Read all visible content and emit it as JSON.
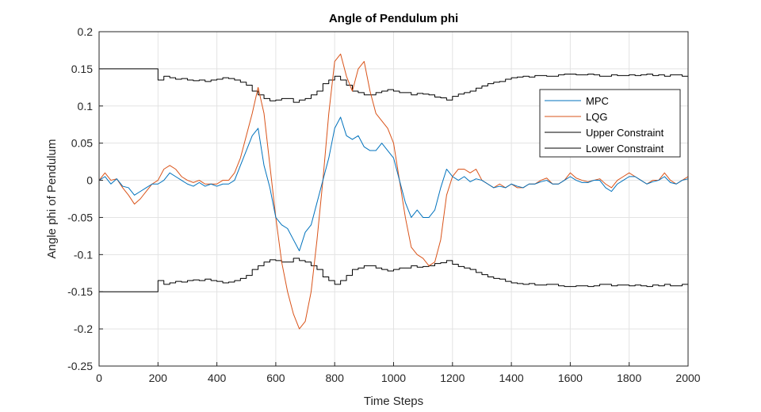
{
  "chart_data": {
    "type": "line",
    "title": "Angle of Pendulum phi",
    "xlabel": "Time Steps",
    "ylabel": "Angle phi of Pendulum",
    "xlim": [
      0,
      2000
    ],
    "ylim": [
      -0.25,
      0.2
    ],
    "xticks": [
      0,
      200,
      400,
      600,
      800,
      1000,
      1200,
      1400,
      1600,
      1800,
      2000
    ],
    "yticks": [
      -0.25,
      -0.2,
      -0.15,
      -0.1,
      -0.05,
      0,
      0.05,
      0.1,
      0.15,
      0.2
    ],
    "ytick_labels": [
      "-0.25",
      "-0.2",
      "-0.15",
      "-0.1",
      "-0.05",
      "0",
      "0.05",
      "0.1",
      "0.15",
      "0.2"
    ],
    "grid": true,
    "legend_position": "top-right",
    "series": [
      {
        "name": "MPC",
        "color": "#0072BD",
        "x": [
          0,
          20,
          40,
          60,
          80,
          100,
          120,
          140,
          160,
          180,
          200,
          220,
          240,
          260,
          280,
          300,
          320,
          340,
          360,
          380,
          400,
          420,
          440,
          460,
          480,
          500,
          520,
          540,
          560,
          580,
          600,
          620,
          640,
          660,
          680,
          700,
          720,
          740,
          760,
          780,
          800,
          820,
          840,
          860,
          880,
          900,
          920,
          940,
          960,
          980,
          1000,
          1020,
          1040,
          1060,
          1080,
          1100,
          1120,
          1140,
          1160,
          1180,
          1200,
          1220,
          1240,
          1260,
          1280,
          1300,
          1320,
          1340,
          1360,
          1380,
          1400,
          1420,
          1440,
          1460,
          1480,
          1500,
          1520,
          1540,
          1560,
          1580,
          1600,
          1620,
          1640,
          1660,
          1680,
          1700,
          1720,
          1740,
          1760,
          1780,
          1800,
          1820,
          1840,
          1860,
          1880,
          1900,
          1920,
          1940,
          1960,
          1980,
          2000
        ],
        "values": [
          0.0,
          0.005,
          -0.005,
          0.002,
          -0.008,
          -0.01,
          -0.02,
          -0.015,
          -0.01,
          -0.005,
          -0.005,
          0.0,
          0.01,
          0.005,
          0.0,
          -0.005,
          -0.008,
          -0.003,
          -0.008,
          -0.005,
          -0.008,
          -0.005,
          -0.005,
          0.0,
          0.02,
          0.04,
          0.06,
          0.07,
          0.02,
          -0.01,
          -0.05,
          -0.06,
          -0.065,
          -0.08,
          -0.095,
          -0.07,
          -0.06,
          -0.03,
          0.0,
          0.03,
          0.07,
          0.085,
          0.06,
          0.055,
          0.06,
          0.045,
          0.04,
          0.04,
          0.05,
          0.04,
          0.03,
          0.0,
          -0.03,
          -0.05,
          -0.04,
          -0.05,
          -0.05,
          -0.04,
          -0.01,
          0.015,
          0.005,
          0.0,
          0.005,
          -0.002,
          0.002,
          0.0,
          -0.005,
          -0.01,
          -0.008,
          -0.01,
          -0.005,
          -0.008,
          -0.01,
          -0.005,
          -0.005,
          -0.002,
          0.0,
          -0.005,
          -0.005,
          0.0,
          0.005,
          0.0,
          -0.003,
          -0.003,
          0.0,
          0.0,
          -0.01,
          -0.015,
          -0.005,
          0.0,
          0.005,
          0.005,
          0.0,
          -0.005,
          -0.002,
          0.0,
          0.005,
          -0.003,
          -0.005,
          0.0,
          0.002
        ]
      },
      {
        "name": "LQG",
        "color": "#D95319",
        "x": [
          0,
          20,
          40,
          60,
          80,
          100,
          120,
          140,
          160,
          180,
          200,
          220,
          240,
          260,
          280,
          300,
          320,
          340,
          360,
          380,
          400,
          420,
          440,
          460,
          480,
          500,
          520,
          540,
          560,
          580,
          600,
          620,
          640,
          660,
          680,
          700,
          720,
          740,
          760,
          780,
          800,
          820,
          840,
          860,
          880,
          900,
          920,
          940,
          960,
          980,
          1000,
          1020,
          1040,
          1060,
          1080,
          1100,
          1120,
          1140,
          1160,
          1180,
          1200,
          1220,
          1240,
          1260,
          1280,
          1300,
          1320,
          1340,
          1360,
          1380,
          1400,
          1420,
          1440,
          1460,
          1480,
          1500,
          1520,
          1540,
          1560,
          1580,
          1600,
          1620,
          1640,
          1660,
          1680,
          1700,
          1720,
          1740,
          1760,
          1780,
          1800,
          1820,
          1840,
          1860,
          1880,
          1900,
          1920,
          1940,
          1960,
          1980,
          2000
        ],
        "values": [
          0.0,
          0.01,
          0.0,
          0.002,
          -0.01,
          -0.02,
          -0.032,
          -0.025,
          -0.015,
          -0.005,
          0.0,
          0.015,
          0.02,
          0.015,
          0.005,
          0.0,
          -0.003,
          0.0,
          -0.005,
          -0.005,
          -0.005,
          0.0,
          0.0,
          0.01,
          0.03,
          0.06,
          0.09,
          0.125,
          0.09,
          0.02,
          -0.05,
          -0.11,
          -0.15,
          -0.18,
          -0.2,
          -0.19,
          -0.15,
          -0.08,
          0.0,
          0.09,
          0.16,
          0.17,
          0.14,
          0.12,
          0.15,
          0.16,
          0.12,
          0.09,
          0.08,
          0.07,
          0.05,
          0.0,
          -0.05,
          -0.09,
          -0.1,
          -0.105,
          -0.115,
          -0.11,
          -0.08,
          -0.02,
          0.005,
          0.015,
          0.015,
          0.01,
          0.015,
          0.0,
          -0.005,
          -0.01,
          -0.005,
          -0.01,
          -0.005,
          -0.01,
          -0.01,
          -0.005,
          -0.005,
          0.0,
          0.003,
          -0.005,
          -0.005,
          0.0,
          0.01,
          0.003,
          0.0,
          -0.002,
          0.0,
          0.002,
          -0.005,
          -0.01,
          0.0,
          0.005,
          0.01,
          0.005,
          0.0,
          -0.005,
          0.0,
          0.0,
          0.01,
          0.0,
          -0.005,
          0.0,
          0.005
        ]
      },
      {
        "name": "Upper Constraint",
        "color": "#000000",
        "x": [
          0,
          200,
          220,
          240,
          260,
          280,
          300,
          320,
          340,
          360,
          380,
          400,
          420,
          440,
          460,
          480,
          500,
          520,
          540,
          560,
          580,
          600,
          620,
          640,
          660,
          680,
          700,
          720,
          740,
          760,
          780,
          800,
          820,
          840,
          860,
          880,
          900,
          920,
          940,
          960,
          980,
          1000,
          1020,
          1040,
          1060,
          1080,
          1100,
          1120,
          1140,
          1160,
          1180,
          1200,
          1220,
          1240,
          1260,
          1280,
          1300,
          1320,
          1340,
          1360,
          1380,
          1400,
          1420,
          1440,
          1460,
          1480,
          1500,
          1520,
          1540,
          1560,
          1580,
          1600,
          1620,
          1640,
          1660,
          1680,
          1700,
          1720,
          1740,
          1760,
          1780,
          1800,
          1820,
          1840,
          1860,
          1880,
          1900,
          1920,
          1940,
          1960,
          1980,
          2000
        ],
        "values": [
          0.15,
          0.135,
          0.14,
          0.138,
          0.136,
          0.137,
          0.135,
          0.134,
          0.135,
          0.133,
          0.135,
          0.136,
          0.138,
          0.137,
          0.135,
          0.132,
          0.128,
          0.12,
          0.115,
          0.11,
          0.107,
          0.108,
          0.11,
          0.11,
          0.105,
          0.108,
          0.11,
          0.115,
          0.12,
          0.13,
          0.135,
          0.14,
          0.135,
          0.128,
          0.12,
          0.118,
          0.115,
          0.115,
          0.118,
          0.12,
          0.122,
          0.12,
          0.118,
          0.118,
          0.115,
          0.117,
          0.116,
          0.115,
          0.112,
          0.111,
          0.108,
          0.113,
          0.116,
          0.118,
          0.12,
          0.124,
          0.127,
          0.13,
          0.132,
          0.133,
          0.136,
          0.138,
          0.139,
          0.14,
          0.139,
          0.141,
          0.141,
          0.14,
          0.14,
          0.142,
          0.143,
          0.143,
          0.142,
          0.142,
          0.143,
          0.142,
          0.14,
          0.14,
          0.142,
          0.141,
          0.141,
          0.142,
          0.141,
          0.142,
          0.143,
          0.141,
          0.142,
          0.14,
          0.142,
          0.142,
          0.14,
          0.14
        ]
      },
      {
        "name": "Lower Constraint",
        "color": "#000000",
        "x": [
          0,
          200,
          220,
          240,
          260,
          280,
          300,
          320,
          340,
          360,
          380,
          400,
          420,
          440,
          460,
          480,
          500,
          520,
          540,
          560,
          580,
          600,
          620,
          640,
          660,
          680,
          700,
          720,
          740,
          760,
          780,
          800,
          820,
          840,
          860,
          880,
          900,
          920,
          940,
          960,
          980,
          1000,
          1020,
          1040,
          1060,
          1080,
          1100,
          1120,
          1140,
          1160,
          1180,
          1200,
          1220,
          1240,
          1260,
          1280,
          1300,
          1320,
          1340,
          1360,
          1380,
          1400,
          1420,
          1440,
          1460,
          1480,
          1500,
          1520,
          1540,
          1560,
          1580,
          1600,
          1620,
          1640,
          1660,
          1680,
          1700,
          1720,
          1740,
          1760,
          1780,
          1800,
          1820,
          1840,
          1860,
          1880,
          1900,
          1920,
          1940,
          1960,
          1980,
          2000
        ],
        "values": [
          -0.15,
          -0.135,
          -0.14,
          -0.138,
          -0.136,
          -0.137,
          -0.135,
          -0.134,
          -0.135,
          -0.133,
          -0.135,
          -0.136,
          -0.138,
          -0.137,
          -0.135,
          -0.132,
          -0.128,
          -0.12,
          -0.115,
          -0.11,
          -0.107,
          -0.108,
          -0.11,
          -0.11,
          -0.105,
          -0.108,
          -0.11,
          -0.115,
          -0.12,
          -0.13,
          -0.135,
          -0.14,
          -0.135,
          -0.128,
          -0.12,
          -0.118,
          -0.115,
          -0.115,
          -0.118,
          -0.12,
          -0.122,
          -0.12,
          -0.118,
          -0.118,
          -0.115,
          -0.117,
          -0.116,
          -0.115,
          -0.112,
          -0.111,
          -0.108,
          -0.113,
          -0.116,
          -0.118,
          -0.12,
          -0.124,
          -0.127,
          -0.13,
          -0.132,
          -0.133,
          -0.136,
          -0.138,
          -0.139,
          -0.14,
          -0.139,
          -0.141,
          -0.141,
          -0.14,
          -0.14,
          -0.142,
          -0.143,
          -0.143,
          -0.142,
          -0.142,
          -0.143,
          -0.142,
          -0.14,
          -0.14,
          -0.142,
          -0.141,
          -0.141,
          -0.142,
          -0.141,
          -0.142,
          -0.143,
          -0.141,
          -0.142,
          -0.14,
          -0.142,
          -0.142,
          -0.14,
          -0.14
        ]
      }
    ]
  }
}
